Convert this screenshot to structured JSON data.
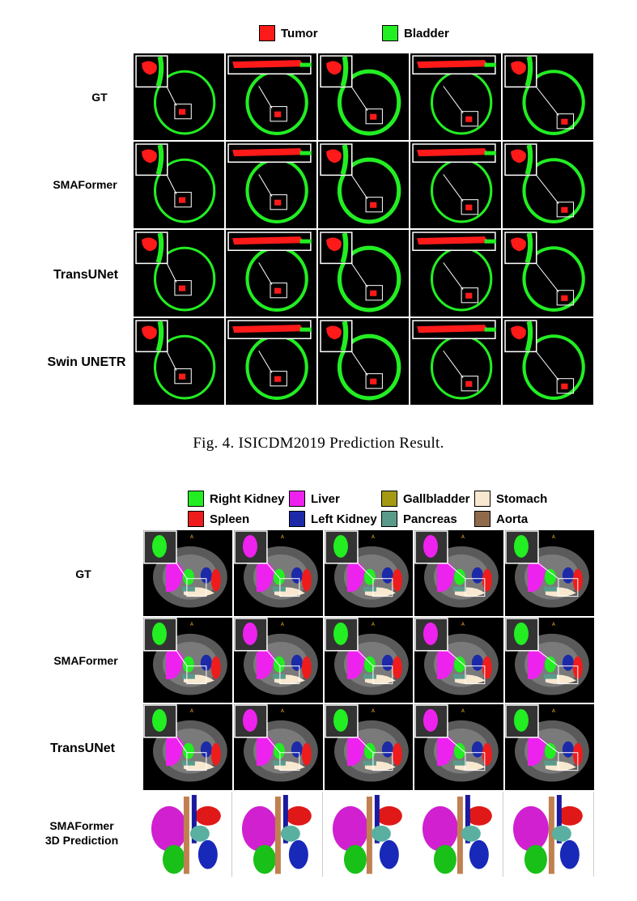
{
  "figure4": {
    "legend": [
      {
        "label": "Tumor",
        "color": "#ff1a1a"
      },
      {
        "label": "Bladder",
        "color": "#22ee22"
      }
    ],
    "rows": [
      "GT",
      "SMAFormer",
      "TransUNet",
      "Swin UNETR"
    ],
    "caption": "Fig. 4.  ISICDM2019 Prediction Result."
  },
  "figure5": {
    "legend": [
      {
        "label": "Right Kidney",
        "color": "#22ee22"
      },
      {
        "label": "Liver",
        "color": "#ee22ee"
      },
      {
        "label": "Gallbladder",
        "color": "#a39a12"
      },
      {
        "label": "Stomach",
        "color": "#f8e8d0"
      },
      {
        "label": "Spleen",
        "color": "#ee1c1c"
      },
      {
        "label": "Left Kidney",
        "color": "#1c2aa8"
      },
      {
        "label": "Pancreas",
        "color": "#5a9a8a"
      },
      {
        "label": "Aorta",
        "color": "#8f6a4a"
      }
    ],
    "rows": [
      "GT",
      "SMAFormer",
      "TransUNet"
    ],
    "row_3d": [
      "SMAFormer",
      "3D Prediction"
    ]
  }
}
